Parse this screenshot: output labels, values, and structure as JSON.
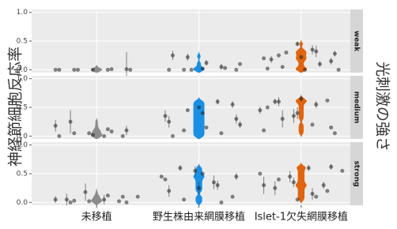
{
  "chart_data": {
    "type": "violin",
    "ylabel": "神経節細胞反応率",
    "facet_title": "光刺激の強さ",
    "categories": [
      "未移植",
      "野生株由来網膜移植",
      "Islet-1欠失網膜移植"
    ],
    "colors": [
      "#8c8c8c",
      "#1a8fe3",
      "#e0650e"
    ],
    "ylim": [
      -0.05,
      1.05
    ],
    "yticks": [
      {
        "value": 0,
        "label": "0.0"
      },
      0.5,
      {
        "value": 1,
        "label": "1.0"
      }
    ],
    "grid": true,
    "facets": [
      {
        "label": "weak",
        "groups": [
          {
            "values": [
              0,
              0,
              0,
              0.01,
              0,
              0,
              0.01,
              0,
              0
            ],
            "errors": [
              null,
              null,
              null,
              0.3,
              null,
              null,
              null,
              null,
              null
            ]
          },
          {
            "values": [
              0,
              0,
              0.02,
              0,
              0.05,
              0.22,
              0.1,
              0.12,
              0.25,
              0.03,
              0
            ],
            "errors": [
              null,
              null,
              null,
              null,
              0.05,
              0.06,
              null,
              0.05,
              0.08,
              null,
              null
            ]
          },
          {
            "values": [
              0.35,
              0.25,
              0.15,
              0.45,
              0.2,
              0.32,
              0.05,
              0.28,
              0.22,
              0.02,
              0.1,
              0.3,
              0,
              0,
              0.18
            ],
            "errors": [
              0.08,
              null,
              0.06,
              0.04,
              null,
              0.1,
              null,
              0.05,
              null,
              null,
              0.05,
              null,
              null,
              null,
              0.06
            ]
          }
        ]
      },
      {
        "label": "medium",
        "groups": [
          {
            "values": [
              0,
              0.25,
              0,
              0.05,
              0.18,
              0.12,
              0.05,
              0.1,
              0.02,
              0,
              0.08
            ],
            "errors": [
              null,
              0.2,
              null,
              null,
              0.1,
              null,
              null,
              0.08,
              null,
              null,
              null
            ]
          },
          {
            "values": [
              0.55,
              0.5,
              0.35,
              0.6,
              0.1,
              0.3,
              0.4,
              0.25,
              0.05,
              0.45,
              0.2,
              0.15,
              0
            ],
            "errors": [
              0.06,
              null,
              0.1,
              0.05,
              null,
              0.08,
              null,
              0.1,
              null,
              null,
              0.06,
              null,
              null
            ]
          },
          {
            "values": [
              0.6,
              0.62,
              0.35,
              0.45,
              0.2,
              0.6,
              0.15,
              0.4,
              0.1,
              0.55,
              0.3,
              0.05,
              0.65,
              0.5
            ],
            "errors": [
              0.05,
              null,
              0.12,
              0.06,
              null,
              0.08,
              null,
              0.1,
              null,
              0.06,
              0.15,
              null,
              0.05,
              null
            ]
          }
        ]
      },
      {
        "label": "strong",
        "groups": [
          {
            "values": [
              0.05,
              0.02,
              0.18,
              0.1,
              0.05,
              0,
              0.1,
              0.02,
              0.05,
              0.12,
              0.03,
              0
            ],
            "errors": [
              0.1,
              null,
              0.15,
              null,
              0.08,
              null,
              null,
              null,
              0.06,
              null,
              null,
              null
            ]
          },
          {
            "values": [
              0.55,
              0.45,
              0.35,
              0.6,
              0.1,
              0.25,
              0.4,
              0.3,
              0.05,
              0.45,
              0.5,
              0.2,
              0
            ],
            "errors": [
              0.08,
              null,
              0.12,
              0.05,
              null,
              0.1,
              null,
              0.08,
              null,
              0.06,
              null,
              0.1,
              null
            ]
          },
          {
            "values": [
              0.3,
              0.45,
              0.55,
              0.6,
              0.25,
              0.2,
              0.35,
              0.5,
              0.15,
              0.4,
              0.62,
              0.05,
              0.3,
              0.1
            ],
            "errors": [
              0.06,
              0.1,
              null,
              0.05,
              0.12,
              null,
              0.08,
              null,
              0.1,
              null,
              0.05,
              null,
              0.15,
              null
            ]
          }
        ]
      }
    ]
  }
}
